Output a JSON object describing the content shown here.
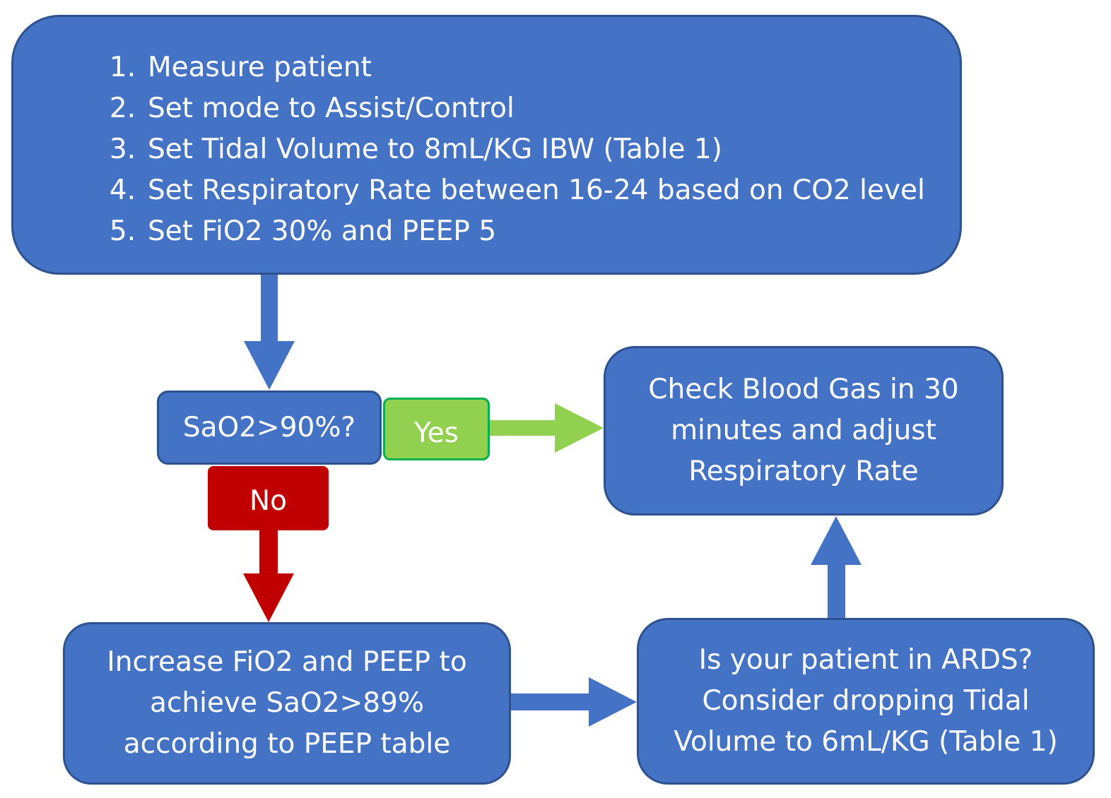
{
  "steps_box": {
    "items": [
      {
        "num": "1.",
        "text": "Measure patient"
      },
      {
        "num": "2.",
        "text": "Set mode to Assist/Control"
      },
      {
        "num": "3.",
        "text": "Set Tidal Volume to 8mL/KG IBW (Table 1)"
      },
      {
        "num": "4.",
        "text": "Set Respiratory Rate between 16-24 based on CO2 level"
      },
      {
        "num": "5.",
        "text": "Set FiO2 30% and PEEP 5"
      }
    ]
  },
  "decision": {
    "label": "SaO2>90%?"
  },
  "yes_label": "Yes",
  "no_label": "No",
  "check_box": {
    "lines": [
      "Check Blood Gas in 30",
      "minutes and adjust",
      "Respiratory Rate"
    ]
  },
  "increase_box": {
    "lines": [
      "Increase FiO2 and PEEP to",
      "achieve SaO2>89%",
      "according to PEEP table"
    ]
  },
  "ards_box": {
    "lines": [
      "Is your patient in ARDS?",
      "Consider dropping Tidal",
      "Volume to 6mL/KG (Table 1)"
    ]
  },
  "colors": {
    "box_fill": "#4472C4",
    "box_border": "#2F528F",
    "yes_fill": "#92D050",
    "yes_border": "#00B050",
    "no_fill": "#C00000",
    "arrow_blue": "#4472C4",
    "arrow_green": "#92D050",
    "arrow_red": "#C00000"
  }
}
